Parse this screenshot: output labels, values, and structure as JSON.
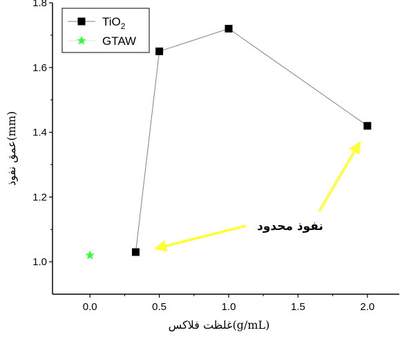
{
  "chart_data": {
    "type": "scatter",
    "xlabel": "غلظت فلاکس(g/mL)",
    "ylabel": "عمق نفوذ(mm)",
    "xlim": [
      -0.27,
      2.23
    ],
    "ylim": [
      0.9,
      1.8
    ],
    "xticks": [
      0.0,
      0.5,
      1.0,
      1.5,
      2.0
    ],
    "yticks": [
      1.0,
      1.2,
      1.4,
      1.6,
      1.8
    ],
    "xtick_labels": [
      "0.0",
      "0.5",
      "1.0",
      "1.5",
      "2.0"
    ],
    "ytick_labels": [
      "1.0",
      "1.2",
      "1.4",
      "1.6",
      "1.8"
    ],
    "series": [
      {
        "name": "TiO",
        "name_sub": "2",
        "marker": "square",
        "color": "#000000",
        "line_color": "#808080",
        "x": [
          0.33,
          0.5,
          1.0,
          2.0
        ],
        "y": [
          1.03,
          1.65,
          1.72,
          1.42
        ]
      },
      {
        "name": "GTAW",
        "marker": "star",
        "color": "#33ff33",
        "x": [
          0.0
        ],
        "y": [
          1.02
        ]
      }
    ],
    "legend": "top-left",
    "annotation": {
      "text": "نفوذ محدود",
      "arrow_color": "#ffff33"
    }
  }
}
